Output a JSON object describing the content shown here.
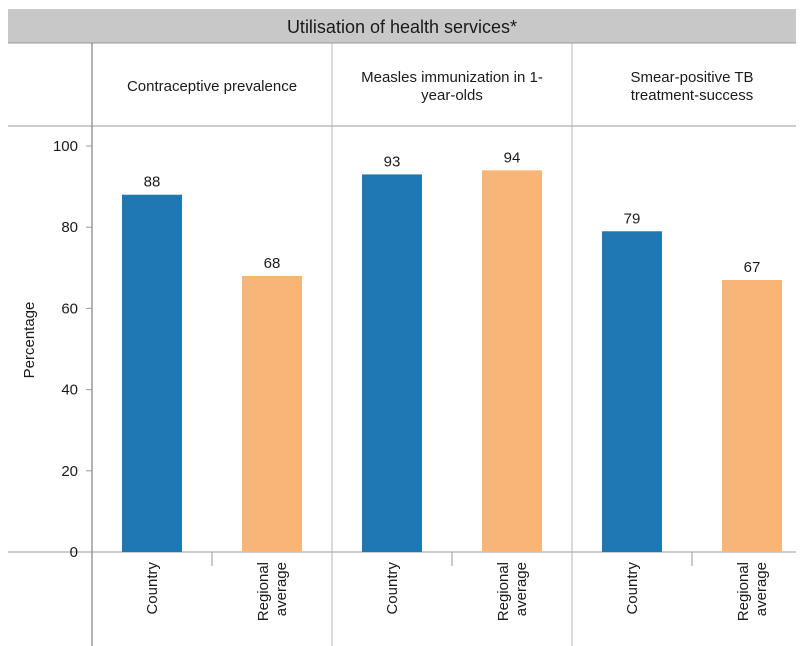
{
  "chart_data": {
    "type": "bar",
    "title": "Utilisation of health services*",
    "ylabel": "Percentage",
    "ylim": [
      0,
      100
    ],
    "yticks": [
      0,
      20,
      40,
      60,
      80,
      100
    ],
    "grid": false,
    "colors": {
      "Country": "#1f77b4",
      "Regional average": "#f9b477"
    },
    "panels": [
      {
        "title": [
          "Contraceptive prevalence"
        ],
        "categories": [
          [
            "Country"
          ],
          [
            "Regional",
            "average"
          ]
        ],
        "values": [
          88,
          68
        ]
      },
      {
        "title": [
          "Measles immunization in 1-",
          "year-olds"
        ],
        "categories": [
          [
            "Country"
          ],
          [
            "Regional",
            "average"
          ]
        ],
        "values": [
          93,
          94
        ]
      },
      {
        "title": [
          "Smear-positive TB",
          "treatment-success"
        ],
        "categories": [
          [
            "Country"
          ],
          [
            "Regional",
            "average"
          ]
        ],
        "values": [
          79,
          67
        ]
      }
    ]
  }
}
